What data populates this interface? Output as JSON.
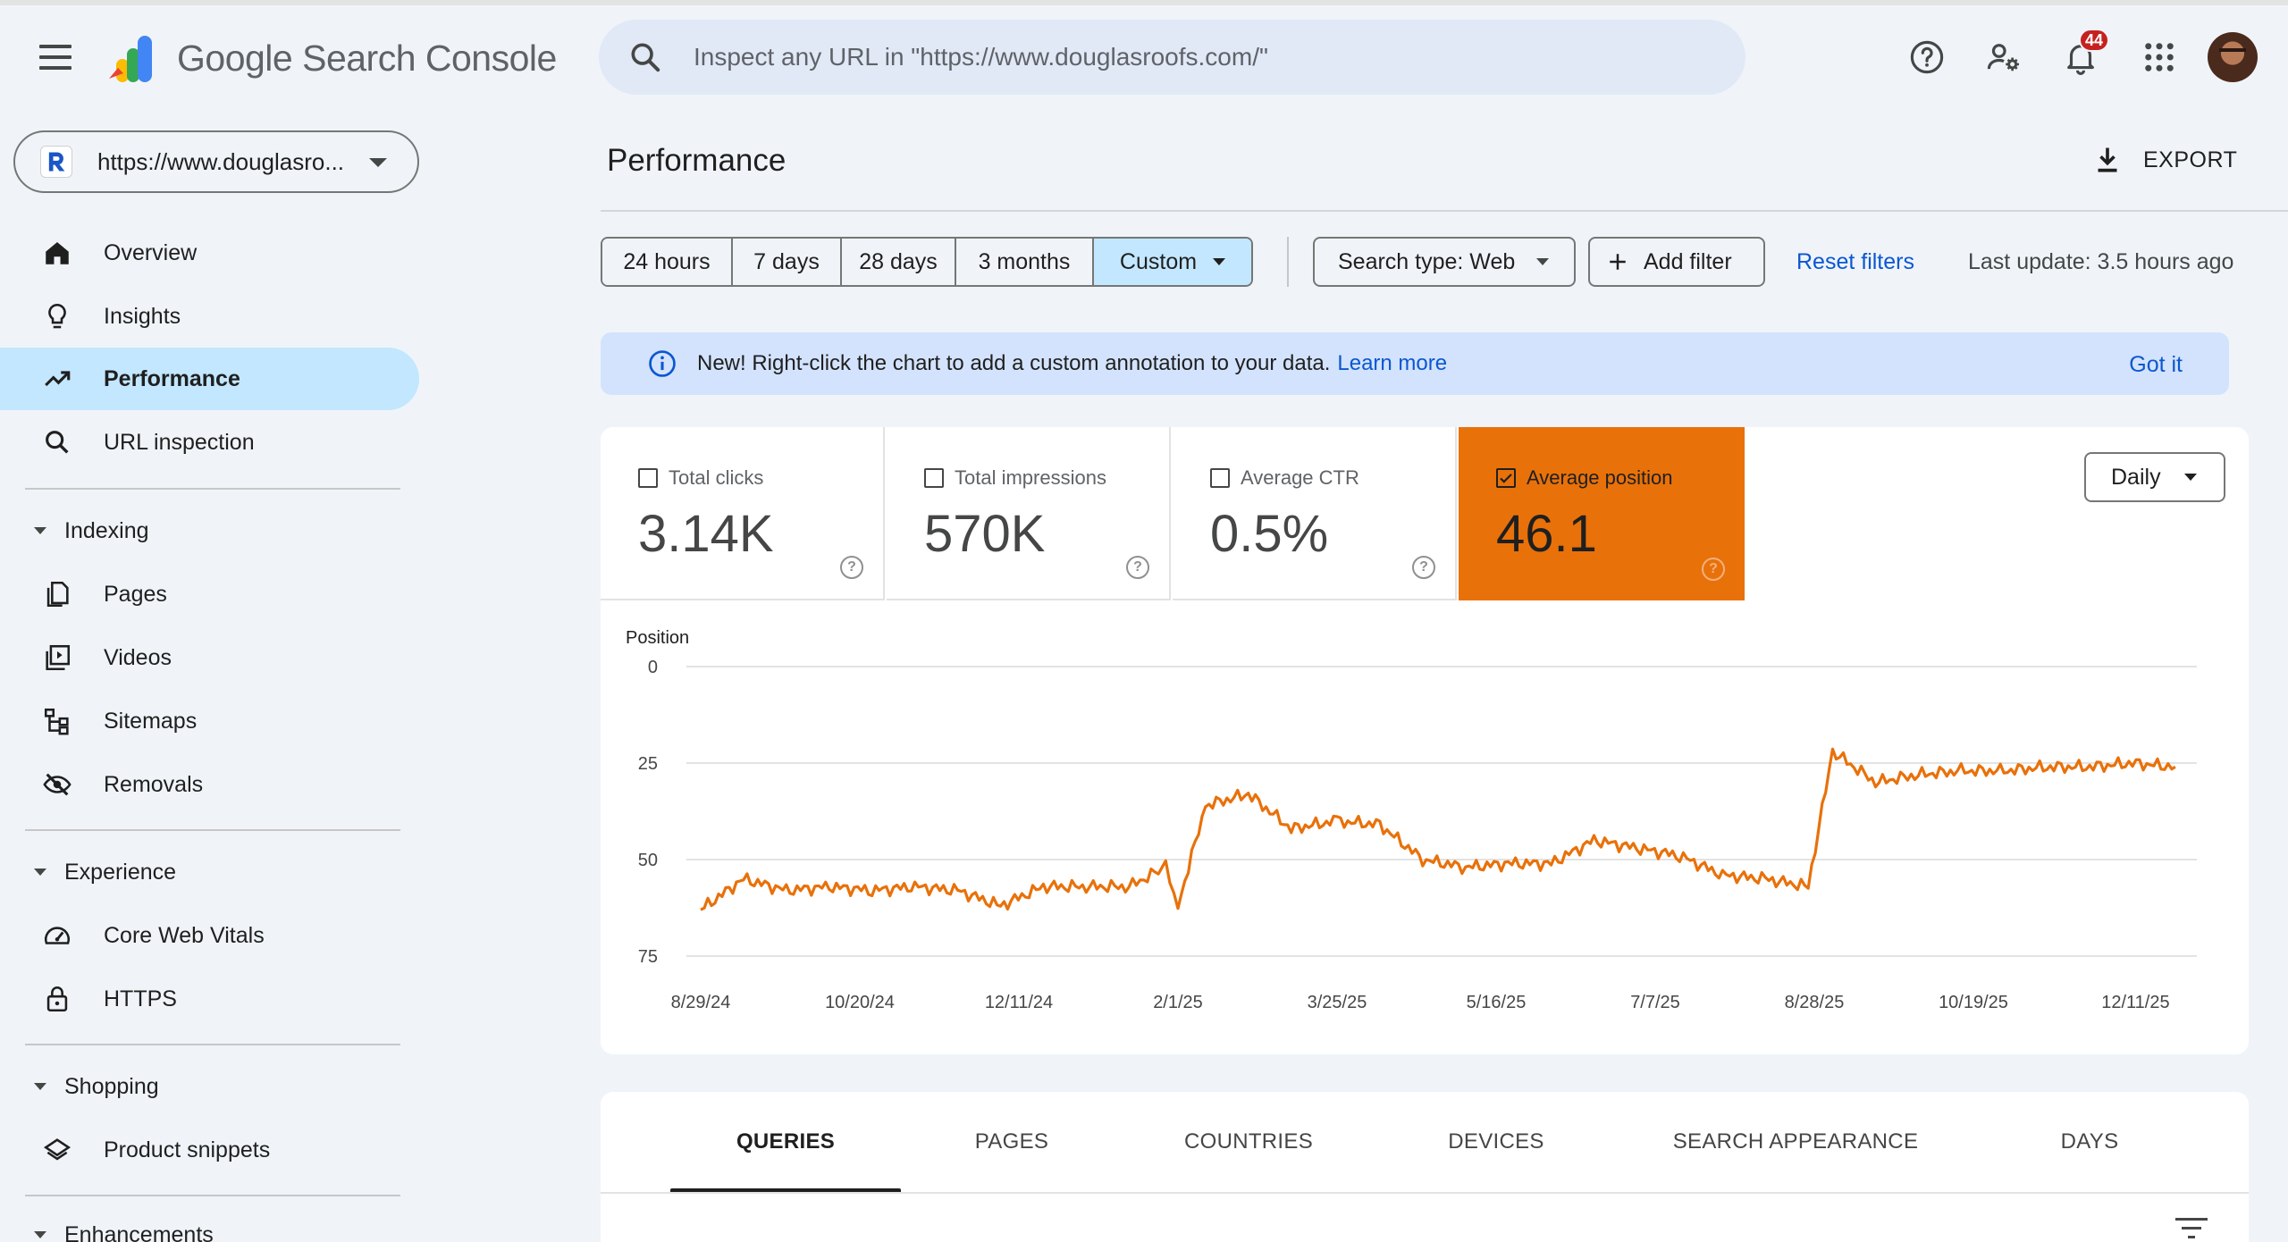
{
  "header": {
    "product_name": "Google Search Console",
    "search_placeholder": "Inspect any URL in \"https://www.douglasroofs.com/\"",
    "notifications_count": "44",
    "icons": [
      "menu-icon",
      "search-icon",
      "help-icon",
      "manage-users-icon",
      "bell-icon",
      "apps-icon"
    ]
  },
  "property": {
    "label": "https://www.douglasro..."
  },
  "sidebar": {
    "top_items": [
      {
        "label": "Overview",
        "icon": "home-icon"
      },
      {
        "label": "Insights",
        "icon": "lightbulb-icon"
      },
      {
        "label": "Performance",
        "icon": "trending-icon",
        "active": true
      },
      {
        "label": "URL inspection",
        "icon": "search-icon"
      }
    ],
    "indexing": {
      "title": "Indexing",
      "items": [
        {
          "label": "Pages",
          "icon": "pages-icon"
        },
        {
          "label": "Videos",
          "icon": "video-icon"
        },
        {
          "label": "Sitemaps",
          "icon": "sitemap-icon"
        },
        {
          "label": "Removals",
          "icon": "eye-off-icon"
        }
      ]
    },
    "experience": {
      "title": "Experience",
      "items": [
        {
          "label": "Core Web Vitals",
          "icon": "gauge-icon"
        },
        {
          "label": "HTTPS",
          "icon": "lock-icon"
        }
      ]
    },
    "shopping": {
      "title": "Shopping",
      "items": [
        {
          "label": "Product snippets",
          "icon": "layers-icon"
        }
      ]
    },
    "enhancements": {
      "title": "Enhancements"
    }
  },
  "main": {
    "title": "Performance",
    "export_label": "EXPORT",
    "date_ranges": [
      "24 hours",
      "7 days",
      "28 days",
      "3 months",
      "Custom"
    ],
    "active_range": "Custom",
    "search_type": "Search type: Web",
    "add_filter": "Add filter",
    "reset_filters": "Reset filters",
    "last_update": "Last update: 3.5 hours ago",
    "banner": {
      "text": "New! Right-click the chart to add a custom annotation to your data.",
      "link": "Learn more",
      "dismiss": "Got it"
    },
    "metrics": [
      {
        "label": "Total clicks",
        "value": "3.14K",
        "checked": false
      },
      {
        "label": "Total impressions",
        "value": "570K",
        "checked": false
      },
      {
        "label": "Average CTR",
        "value": "0.5%",
        "checked": false
      },
      {
        "label": "Average position",
        "value": "46.1",
        "checked": true
      }
    ],
    "granularity": "Daily",
    "tabs": [
      "QUERIES",
      "PAGES",
      "COUNTRIES",
      "DEVICES",
      "SEARCH APPEARANCE",
      "DAYS"
    ],
    "active_tab": "QUERIES"
  },
  "colors": {
    "accent": "#e8710a",
    "active_nav": "#c2e7ff",
    "link": "#0b57d0",
    "background": "#f0f4f9",
    "banner": "#d3e3fd"
  },
  "chart_data": {
    "type": "line",
    "ylabel": "Position",
    "y_inverted": true,
    "ylim": [
      0,
      75
    ],
    "y_ticks": [
      "0",
      "25",
      "50",
      "75"
    ],
    "x_tick_labels": [
      "8/29/24",
      "10/20/24",
      "12/11/24",
      "2/1/25",
      "3/25/25",
      "5/16/25",
      "7/7/25",
      "8/28/25",
      "10/19/25",
      "12/11/25"
    ],
    "grid": true,
    "series": [
      {
        "color": "#e8710a",
        "x": [
          "8/29/24",
          "9/12/24",
          "9/26/24",
          "10/10/24",
          "10/24/24",
          "11/7/24",
          "11/21/24",
          "12/5/24",
          "12/19/24",
          "1/2/25",
          "1/16/25",
          "1/28/25",
          "2/1/25",
          "2/10/25",
          "2/24/25",
          "3/10/25",
          "3/25/25",
          "4/8/25",
          "4/22/25",
          "5/6/25",
          "5/20/25",
          "6/3/25",
          "6/17/25",
          "7/1/25",
          "7/15/25",
          "7/29/25",
          "8/12/25",
          "8/26/25",
          "9/3/25",
          "9/17/25",
          "10/1/25",
          "10/15/25",
          "10/29/25",
          "11/12/25",
          "11/26/25",
          "12/10/25",
          "12/24/25"
        ],
        "y": [
          63,
          55,
          58,
          57,
          58,
          57,
          58,
          62,
          57,
          57,
          57,
          52,
          62,
          36,
          33,
          42,
          40,
          41,
          50,
          52,
          51,
          51,
          45,
          47,
          49,
          54,
          55,
          57,
          22,
          30,
          28,
          27,
          27,
          26,
          26,
          25,
          26
        ]
      }
    ]
  }
}
